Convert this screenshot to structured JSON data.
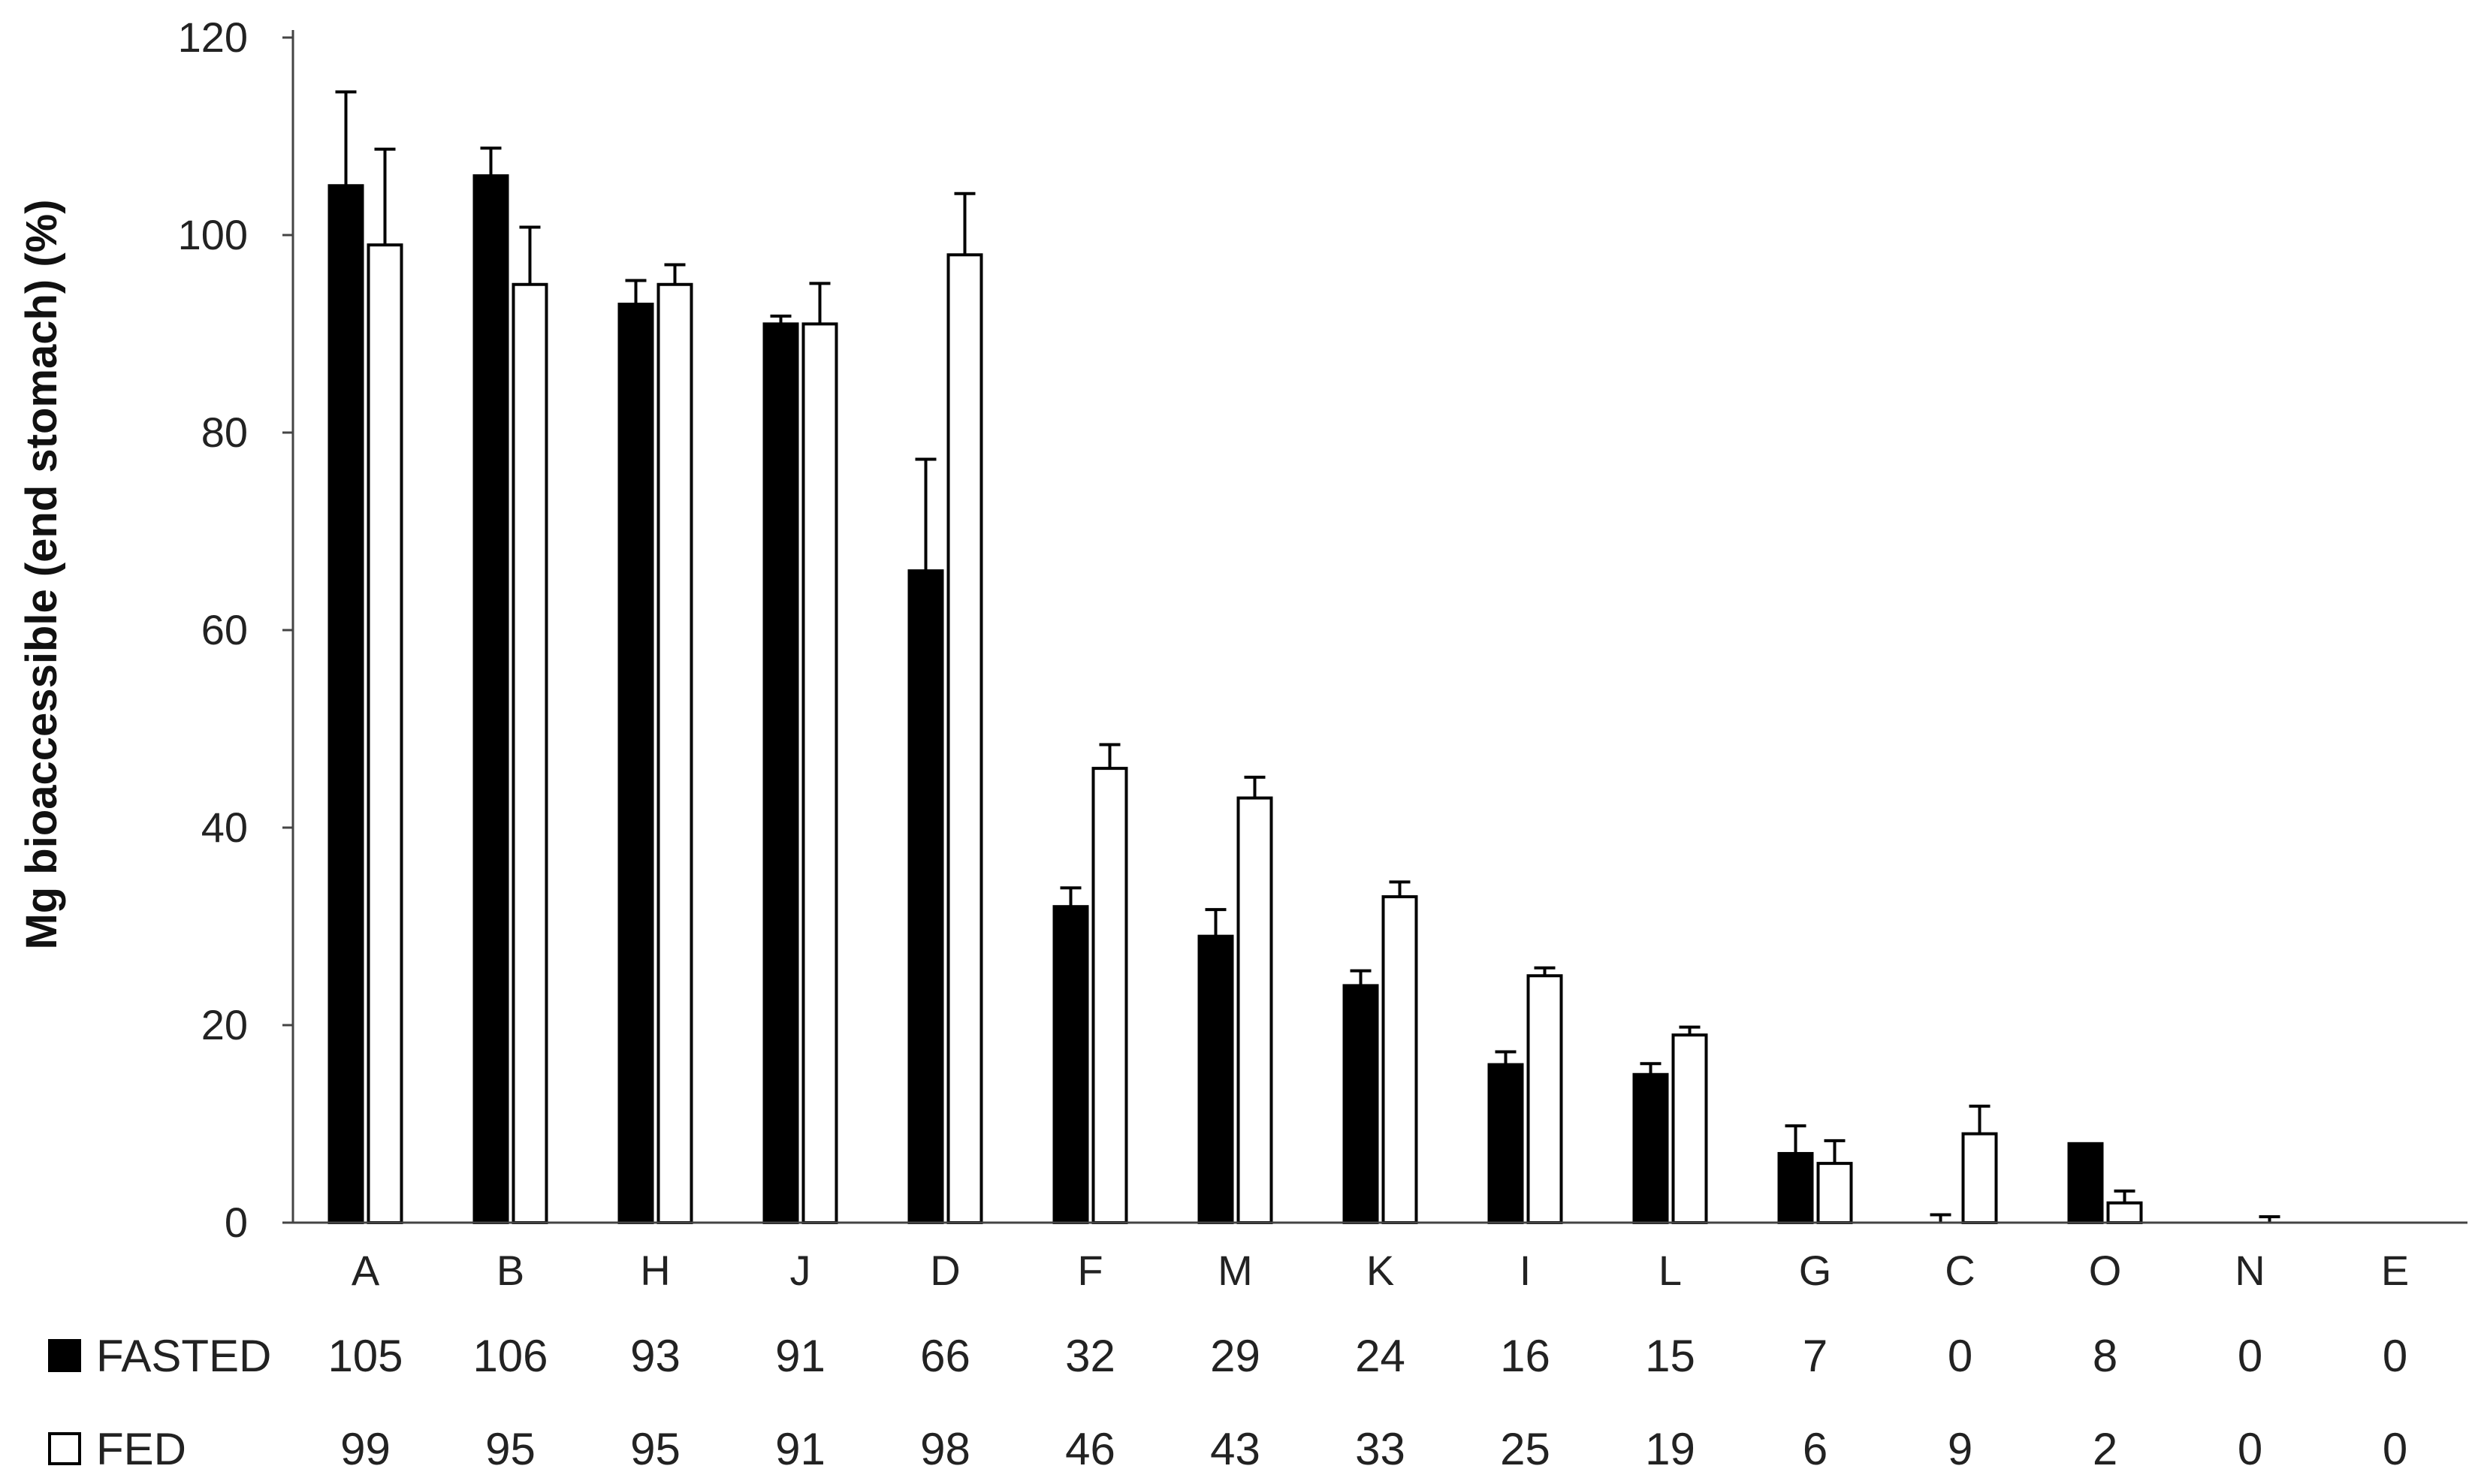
{
  "chart_data": {
    "type": "bar",
    "ylabel": "Mg bioaccessible (end stomach) (%)",
    "xlabel": "",
    "ylim": [
      0,
      120
    ],
    "yticks": [
      0,
      20,
      40,
      60,
      80,
      100,
      120
    ],
    "categories": [
      "A",
      "B",
      "H",
      "J",
      "D",
      "F",
      "M",
      "K",
      "I",
      "L",
      "G",
      "C",
      "O",
      "N",
      "E"
    ],
    "series": [
      {
        "name": "FASTED",
        "fill": "#000000",
        "values": [
          105,
          106,
          93,
          91,
          66,
          32,
          29,
          24,
          16,
          15,
          7,
          0,
          8,
          0,
          0
        ],
        "errors": [
          9.5,
          2.8,
          2.4,
          0.8,
          11.3,
          1.9,
          2.7,
          1.5,
          1.3,
          1.1,
          2.8,
          0.8,
          0,
          0,
          0
        ]
      },
      {
        "name": "FED",
        "fill": "#ffffff",
        "values": [
          99,
          95,
          95,
          91,
          98,
          46,
          43,
          33,
          25,
          19,
          6,
          9,
          2,
          0,
          0
        ],
        "errors": [
          9.7,
          5.8,
          2,
          4.1,
          6.2,
          2.4,
          2.1,
          1.5,
          0.8,
          0.8,
          2.3,
          2.8,
          1.2,
          0.6,
          0
        ]
      }
    ],
    "data_table": {
      "rows": [
        {
          "label": "FASTED",
          "values": [
            "105",
            "106",
            "93",
            "91",
            "66",
            "32",
            "29",
            "24",
            "16",
            "15",
            "7",
            "0",
            "8",
            "0",
            "0"
          ]
        },
        {
          "label": "FED",
          "values": [
            "99",
            "95",
            "95",
            "91",
            "98",
            "46",
            "43",
            "33",
            "25",
            "19",
            "6",
            "9",
            "2",
            "0",
            "0"
          ]
        }
      ]
    },
    "grid": false,
    "legend_placement": "data-table"
  }
}
